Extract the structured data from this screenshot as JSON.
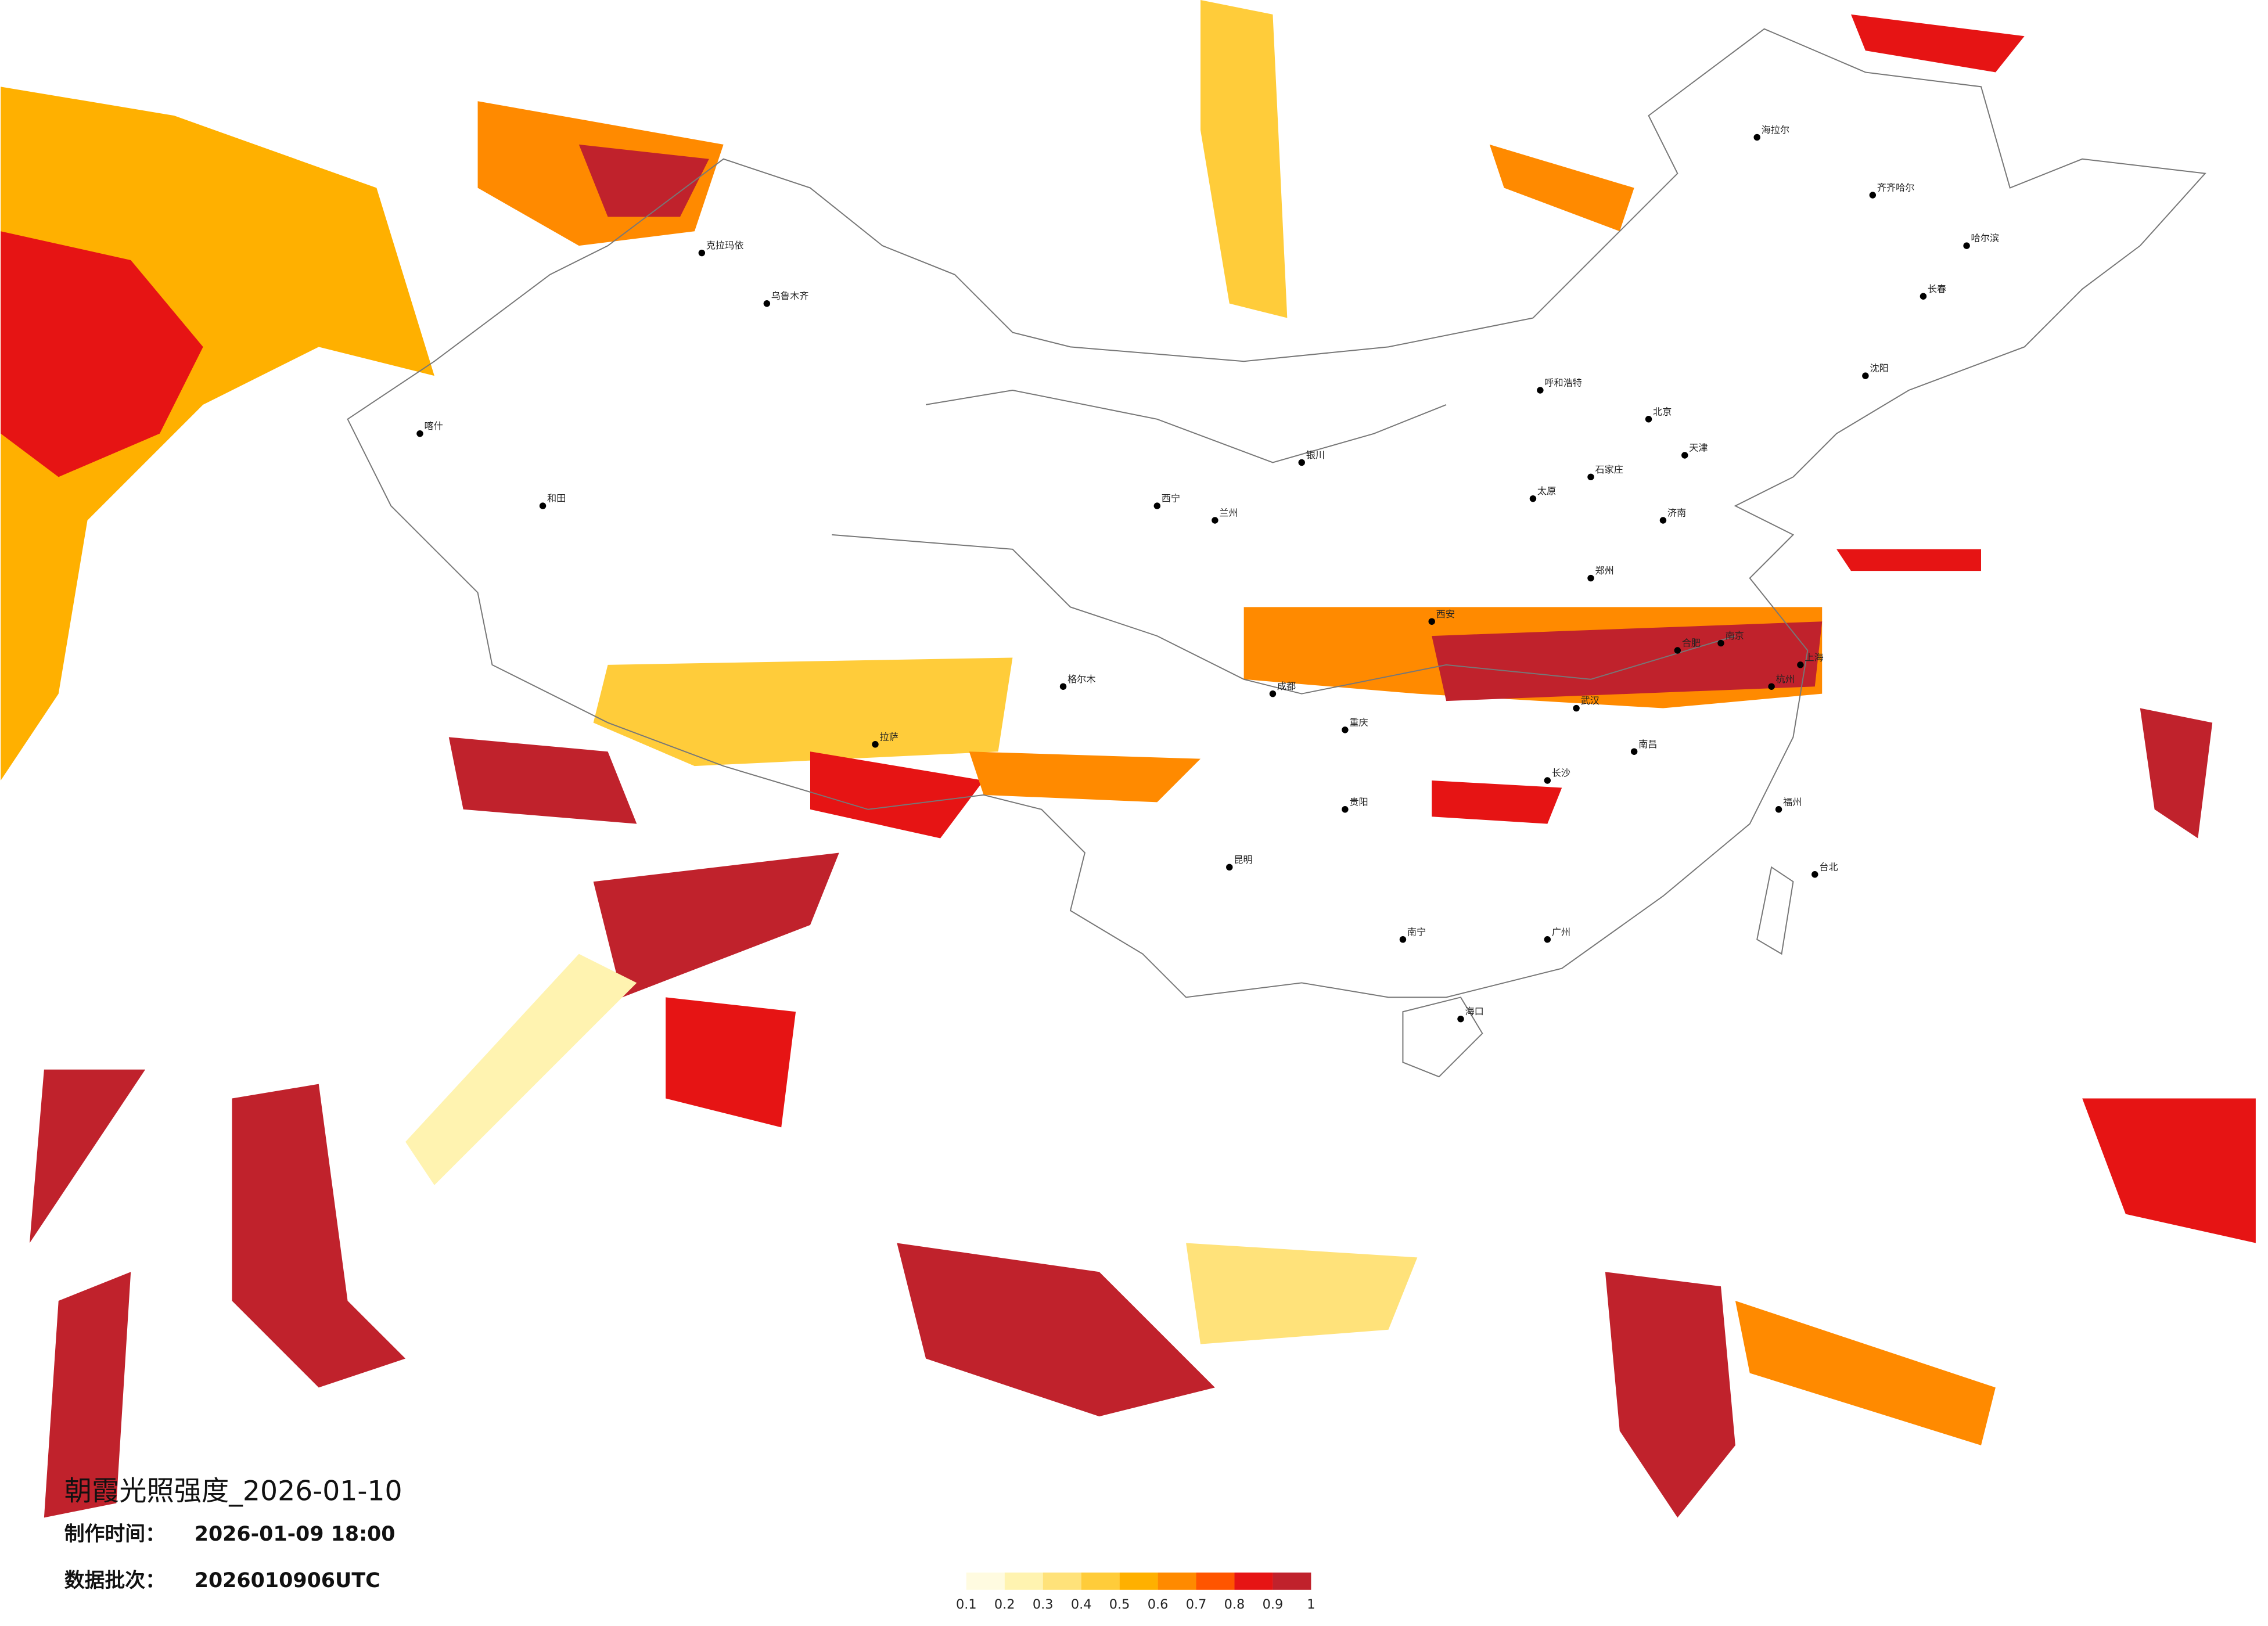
{
  "header": {
    "title": "朝霞光照强度_2026-01-10",
    "made_label": "制作时间：",
    "made_time": "2026-01-09 18:00",
    "batch_label": "数据批次：",
    "batch": "2026010906UTC"
  },
  "legend": {
    "labels": [
      "0.1",
      "0.2",
      "0.3",
      "0.4",
      "0.5",
      "0.6",
      "0.7",
      "0.8",
      "0.9",
      "1"
    ],
    "colors": [
      "#fffbe0",
      "#fff3b0",
      "#ffe27a",
      "#ffcc3a",
      "#ffb000",
      "#ff8a00",
      "#ff5500",
      "#e61414",
      "#c0222c"
    ]
  },
  "cities": [
    "海拉尔",
    "齐齐哈尔",
    "哈尔滨",
    "长春",
    "沈阳",
    "北京",
    "天津",
    "呼和浩特",
    "石家庄",
    "太原",
    "济南",
    "郑州",
    "西安",
    "银川",
    "兰州",
    "西宁",
    "克拉玛依",
    "乌鲁木齐",
    "喀什",
    "和田",
    "格尔木",
    "拉萨",
    "成都",
    "重庆",
    "贵阳",
    "昆明",
    "南宁",
    "海口",
    "长沙",
    "武汉",
    "南昌",
    "合肥",
    "南京",
    "上海",
    "杭州",
    "福州",
    "广州",
    "台北"
  ]
}
